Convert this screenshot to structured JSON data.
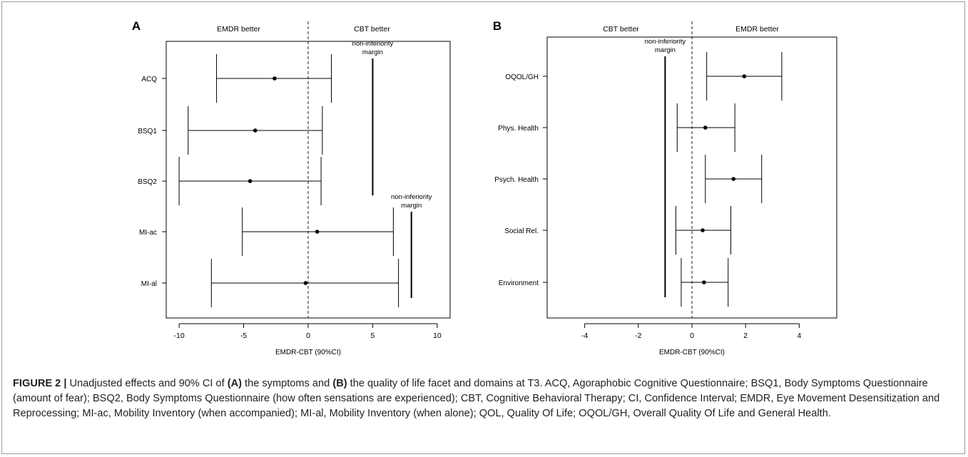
{
  "chart_data": [
    {
      "type": "forest",
      "panel_label": "A",
      "header_left": "EMDR better",
      "header_right": "CBT better",
      "xlabel": "EMDR-CBT (90%CI)",
      "xlim": [
        -11,
        11
      ],
      "xticks": [
        -10,
        -5,
        0,
        5,
        10
      ],
      "reference_line": 0,
      "rows": [
        {
          "label": "ACQ",
          "estimate": -2.6,
          "lower": -7.1,
          "upper": 1.8
        },
        {
          "label": "BSQ1",
          "estimate": -4.1,
          "lower": -9.3,
          "upper": 1.1
        },
        {
          "label": "BSQ2",
          "estimate": -4.5,
          "lower": -10.0,
          "upper": 1.0
        },
        {
          "label": "MI-ac",
          "estimate": 0.7,
          "lower": -5.1,
          "upper": 6.6
        },
        {
          "label": "MI-al",
          "estimate": -0.2,
          "lower": -7.5,
          "upper": 7.0
        }
      ],
      "margins": [
        {
          "label": "non-inferiority\nmargin",
          "x": 5,
          "rows": [
            0,
            2
          ]
        },
        {
          "label": "non-inferiority\nmargin",
          "x": 8,
          "rows": [
            3,
            4
          ]
        }
      ]
    },
    {
      "type": "forest",
      "panel_label": "B",
      "header_left": "CBT better",
      "header_right": "EMDR better",
      "xlabel": "EMDR-CBT (90%CI)",
      "xlim": [
        -5.4,
        5.4
      ],
      "xticks": [
        -4,
        -2,
        0,
        2,
        4
      ],
      "reference_line": 0,
      "rows": [
        {
          "label": "OQOL/GH",
          "estimate": 1.95,
          "lower": 0.55,
          "upper": 3.35
        },
        {
          "label": "Phys. Health",
          "estimate": 0.5,
          "lower": -0.55,
          "upper": 1.6
        },
        {
          "label": "Psych. Health",
          "estimate": 1.55,
          "lower": 0.5,
          "upper": 2.6
        },
        {
          "label": "Social Rel.",
          "estimate": 0.4,
          "lower": -0.6,
          "upper": 1.45
        },
        {
          "label": "Environment",
          "estimate": 0.45,
          "lower": -0.4,
          "upper": 1.35
        }
      ],
      "margins": [
        {
          "label": "non-inferiority\nmargin",
          "x": -1,
          "rows": [
            0,
            4
          ]
        }
      ]
    }
  ],
  "caption": {
    "lead": "FIGURE 2 |",
    "text1": " Unadjusted effects and 90% CI of ",
    "a": "(A)",
    "text2": " the symptoms and ",
    "b": "(B)",
    "text3": " the quality of life facet and domains at T3. ACQ, Agoraphobic Cognitive Questionnaire; BSQ1, Body Symptoms Questionnaire (amount of fear); BSQ2, Body Symptoms Questionnaire (how often sensations are experienced); CBT, Cognitive Behavioral Therapy; CI, Confidence Interval; EMDR, Eye Movement Desensitization and Reprocessing; MI-ac, Mobility Inventory (when accompanied); MI-al, Mobility Inventory (when alone); QOL, Quality Of Life; OQOL/GH, Overall Quality Of Life and General Health."
  },
  "colors": {
    "ink": "#000000",
    "caption": "#222222",
    "frame": "#9a9a9a"
  }
}
